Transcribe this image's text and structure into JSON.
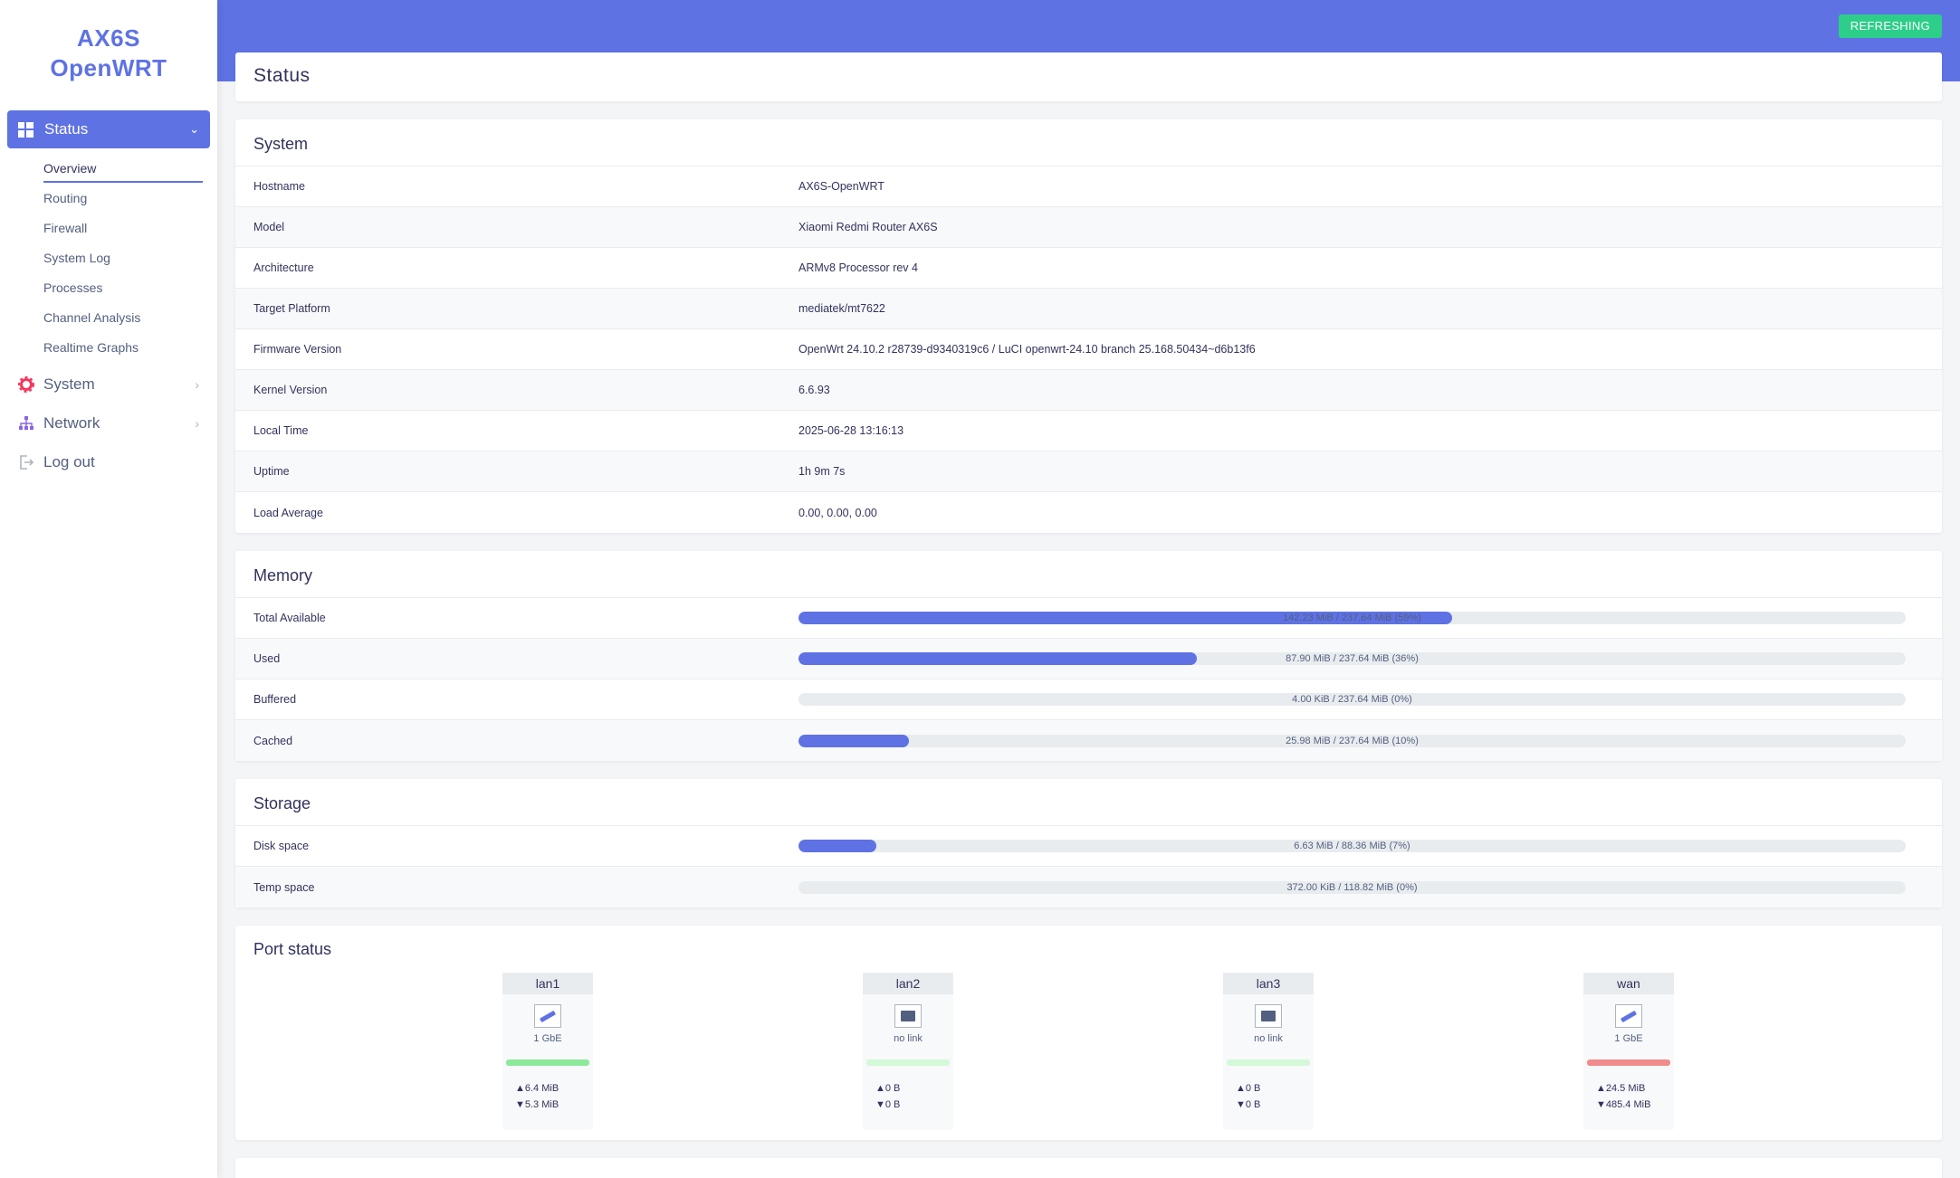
{
  "brand": {
    "line1": "AX6S",
    "line2": "OpenWRT"
  },
  "sidebar": {
    "active_section": "Status",
    "subitems": [
      "Overview",
      "Routing",
      "Firewall",
      "System Log",
      "Processes",
      "Channel Analysis",
      "Realtime Graphs"
    ],
    "items": [
      {
        "label": "System",
        "icon": "gear-icon"
      },
      {
        "label": "Network",
        "icon": "network-icon"
      },
      {
        "label": "Log out",
        "icon": "logout-icon"
      }
    ]
  },
  "header": {
    "refresh_label": "REFRESHING"
  },
  "page": {
    "title": "Status"
  },
  "system": {
    "title": "System",
    "rows": [
      {
        "key": "Hostname",
        "value": "AX6S-OpenWRT"
      },
      {
        "key": "Model",
        "value": "Xiaomi Redmi Router AX6S"
      },
      {
        "key": "Architecture",
        "value": "ARMv8 Processor rev 4"
      },
      {
        "key": "Target Platform",
        "value": "mediatek/mt7622"
      },
      {
        "key": "Firmware Version",
        "value": "OpenWrt 24.10.2 r28739-d9340319c6 / LuCI openwrt-24.10 branch 25.168.50434~d6b13f6"
      },
      {
        "key": "Kernel Version",
        "value": "6.6.93"
      },
      {
        "key": "Local Time",
        "value": "2025-06-28 13:16:13"
      },
      {
        "key": "Uptime",
        "value": "1h 9m 7s"
      },
      {
        "key": "Load Average",
        "value": "0.00, 0.00, 0.00"
      }
    ]
  },
  "memory": {
    "title": "Memory",
    "rows": [
      {
        "key": "Total Available",
        "text": "142.23 MiB / 237.64 MiB (59%)",
        "percent": 59
      },
      {
        "key": "Used",
        "text": "87.90 MiB / 237.64 MiB (36%)",
        "percent": 36
      },
      {
        "key": "Buffered",
        "text": "4.00 KiB / 237.64 MiB (0%)",
        "percent": 0
      },
      {
        "key": "Cached",
        "text": "25.98 MiB / 237.64 MiB (10%)",
        "percent": 10
      }
    ]
  },
  "storage": {
    "title": "Storage",
    "rows": [
      {
        "key": "Disk space",
        "text": "6.63 MiB / 88.36 MiB (7%)",
        "percent": 7
      },
      {
        "key": "Temp space",
        "text": "372.00 KiB / 118.82 MiB (0%)",
        "percent": 0
      }
    ]
  },
  "ports": {
    "title": "Port status",
    "items": [
      {
        "name": "lan1",
        "speed": "1 GbE",
        "link": "up",
        "color": "#8ce99a",
        "tx": "▲6.4 MiB",
        "rx": "▼5.3 MiB"
      },
      {
        "name": "lan2",
        "speed": "no link",
        "link": "down",
        "color": "#d3f9d8",
        "tx": "▲0 B",
        "rx": "▼0 B"
      },
      {
        "name": "lan3",
        "speed": "no link",
        "link": "down",
        "color": "#d3f9d8",
        "tx": "▲0 B",
        "rx": "▼0 B"
      },
      {
        "name": "wan",
        "speed": "1 GbE",
        "link": "up",
        "color": "#f08c8c",
        "tx": "▲24.5 MiB",
        "rx": "▼485.4 MiB"
      }
    ]
  },
  "colors": {
    "accent": "#5e72e4",
    "refresh": "#2dce89"
  }
}
